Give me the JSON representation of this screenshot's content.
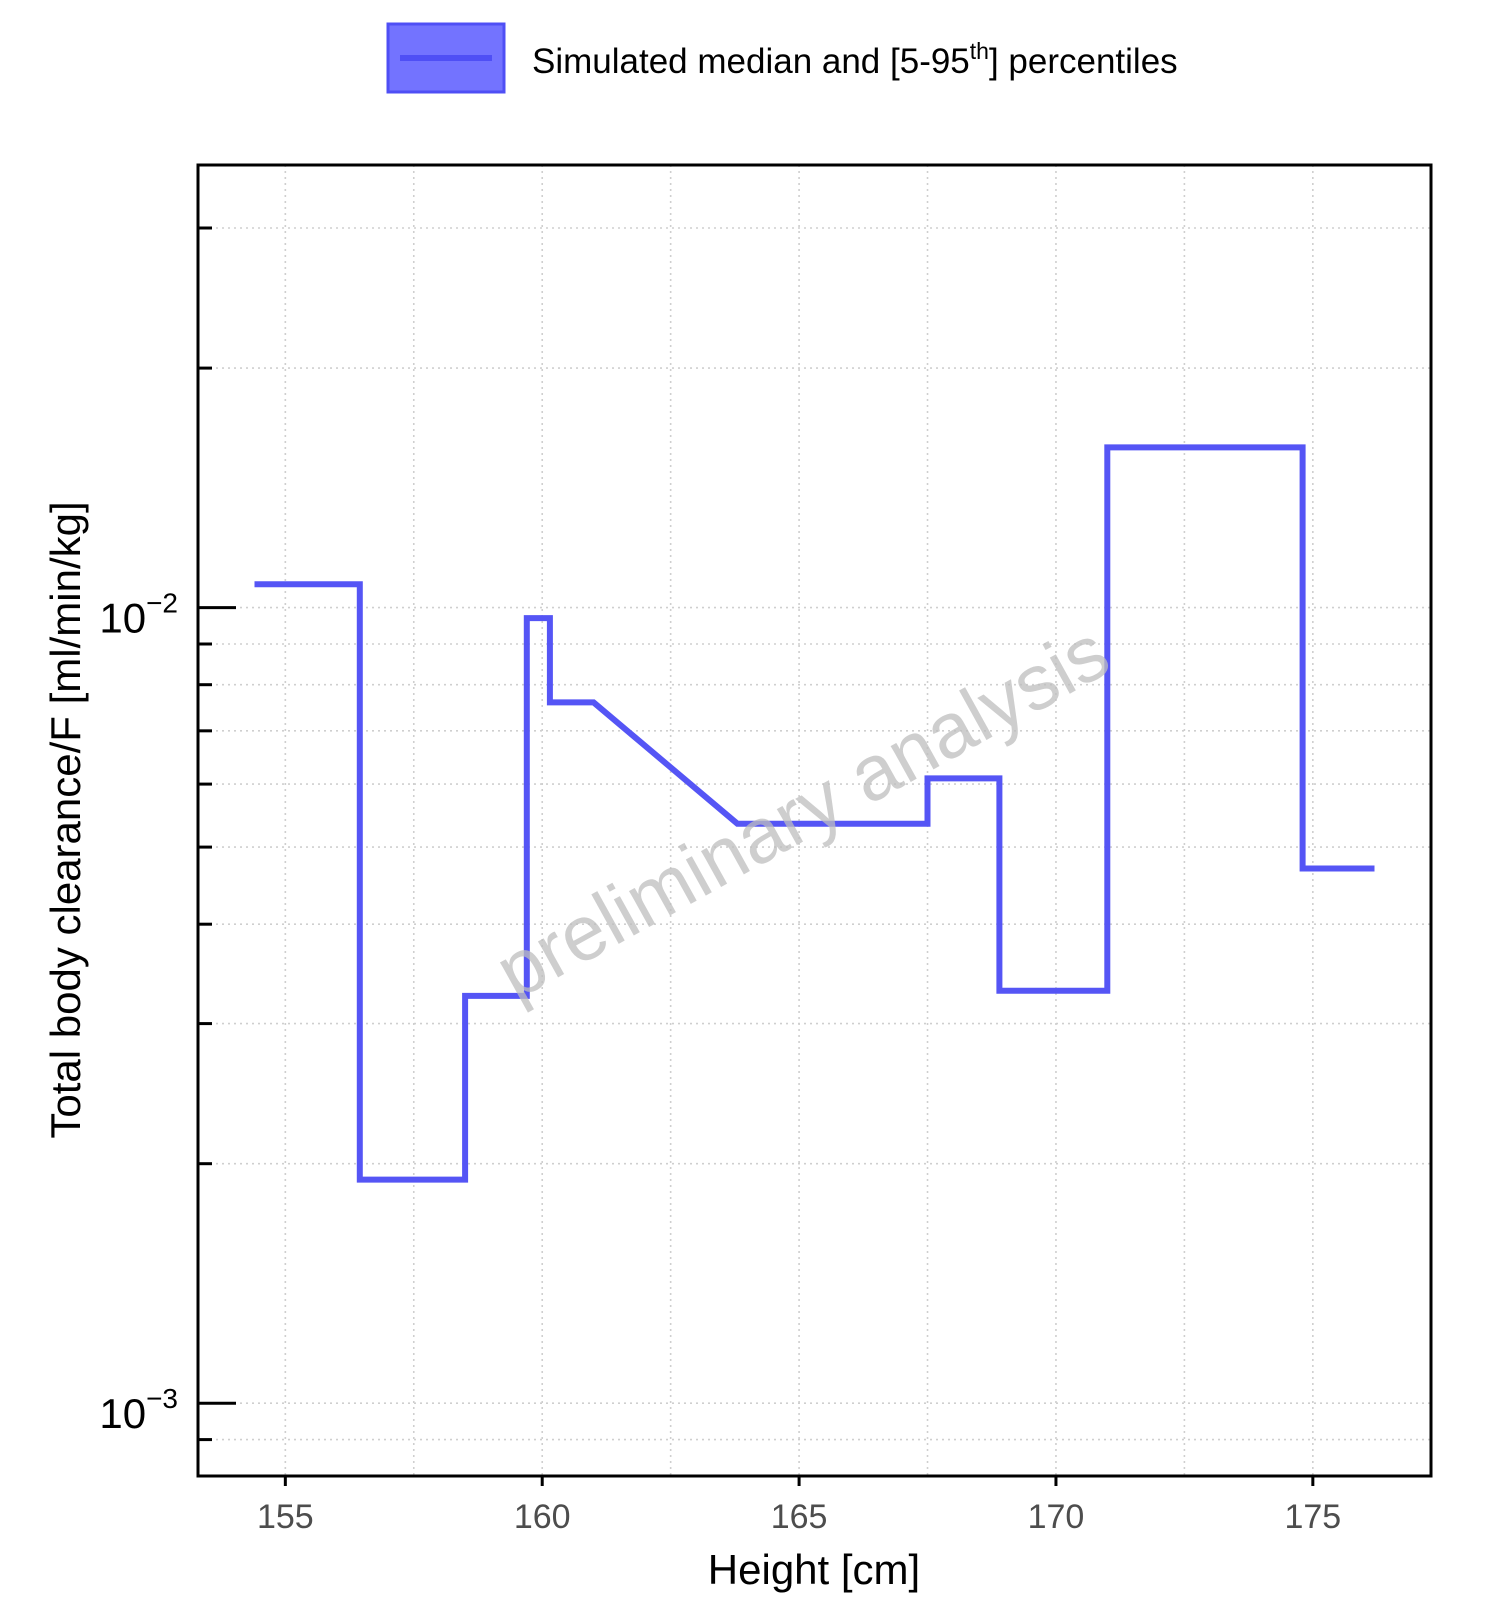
{
  "legend": {
    "label_main": "Simulated median and [5-95",
    "label_sup": "th",
    "label_end": "] percentiles",
    "swatch_fill": "#7373ff",
    "swatch_border": "#4f4ff5"
  },
  "watermark": "preliminary analysis",
  "chart_data": {
    "type": "line",
    "xlabel": "Height [cm]",
    "ylabel": "Total body clearance/F [ml/min/kg]",
    "x_ticks": [
      155,
      160,
      165,
      170,
      175
    ],
    "xlim": [
      153.3,
      177.3
    ],
    "ylim": [
      0.00081,
      0.036
    ],
    "y_scale": "log",
    "y_major_ticks": [
      {
        "value": 0.01,
        "base": "10",
        "exp": "−2"
      },
      {
        "value": 0.001,
        "base": "10",
        "exp": "−3"
      }
    ],
    "y_minor_ticks": [
      0.0009,
      0.002,
      0.003,
      0.004,
      0.005,
      0.006,
      0.007,
      0.008,
      0.009,
      0.02,
      0.03
    ],
    "grid": true,
    "series": [
      {
        "name": "Simulated median and [5-95th] percentiles",
        "color": "#5555f5",
        "x": [
          154.4,
          156.45,
          156.45,
          158.5,
          158.5,
          159.7,
          159.7,
          160.15,
          160.15,
          161.0,
          163.8,
          167.5,
          167.5,
          168.9,
          168.9,
          171.0,
          171.0,
          174.8,
          174.8,
          176.2
        ],
        "y": [
          0.0107,
          0.0107,
          0.00191,
          0.00191,
          0.00325,
          0.00325,
          0.0097,
          0.0097,
          0.0076,
          0.0076,
          0.00535,
          0.00535,
          0.0061,
          0.0061,
          0.0033,
          0.0033,
          0.0159,
          0.0159,
          0.0047,
          0.0047
        ]
      }
    ]
  }
}
